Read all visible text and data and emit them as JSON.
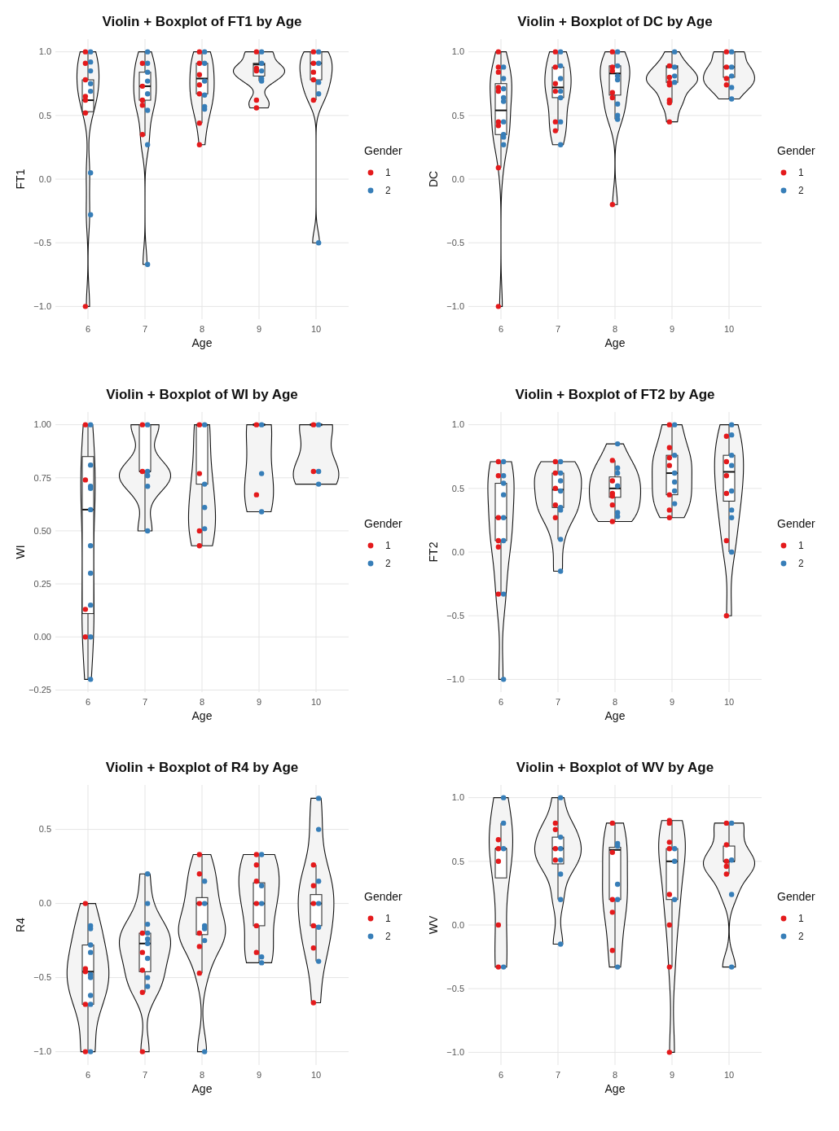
{
  "chart_data": [
    {
      "type": "box",
      "color": "#ffffff",
      "title": "Violin + Boxplot of FT1 by Age",
      "xlabel": "Age",
      "ylabel": "FT1",
      "legend_title": "Gender",
      "legend": "right",
      "grid": true,
      "marker": "circle",
      "categories": [
        "6",
        "7",
        "8",
        "9",
        "10"
      ],
      "ylim": [
        -1.1,
        1.1
      ],
      "yticks": [
        {
          "value": -1,
          "label": "−1.0"
        },
        {
          "value": -0.5,
          "label": "−0.5"
        },
        {
          "value": 0,
          "label": "0.0"
        },
        {
          "value": 0.5,
          "label": "0.5"
        },
        {
          "value": 1,
          "label": "1.0"
        }
      ],
      "boxes": [
        {
          "low": 0.52,
          "q1": 0.53,
          "median": 0.62,
          "q3": 0.78,
          "high": 1.0
        },
        {
          "low": 0.34,
          "q1": 0.62,
          "median": 0.73,
          "q3": 0.84,
          "high": 1.0
        },
        {
          "low": 0.44,
          "q1": 0.67,
          "median": 0.79,
          "q3": 0.91,
          "high": 1.0
        },
        {
          "low": 0.77,
          "q1": 0.81,
          "median": 0.9,
          "q3": 0.91,
          "high": 1.0
        },
        {
          "low": 0.62,
          "q1": 0.78,
          "median": 0.91,
          "q3": 1.0,
          "high": 1.0
        }
      ],
      "series": [
        {
          "type": "scatter",
          "name": "1",
          "color": "#e41a1c",
          "x": [
            "6",
            "6",
            "6",
            "6",
            "6",
            "6",
            "6",
            "7",
            "7",
            "7",
            "7",
            "7",
            "8",
            "8",
            "8",
            "8",
            "8",
            "8",
            "8",
            "9",
            "9",
            "9",
            "9",
            "9",
            "10",
            "10",
            "10",
            "10",
            "10"
          ],
          "values": [
            1.0,
            0.91,
            0.78,
            0.65,
            0.62,
            0.52,
            -1.0,
            0.91,
            0.73,
            0.62,
            0.58,
            0.35,
            1.0,
            0.91,
            0.82,
            0.74,
            0.67,
            0.44,
            0.27,
            1.0,
            0.87,
            0.85,
            0.62,
            0.56,
            1.0,
            0.91,
            0.84,
            0.78,
            0.62
          ]
        },
        {
          "type": "scatter",
          "name": "2",
          "color": "#377eb8",
          "x": [
            "6",
            "6",
            "6",
            "6",
            "6",
            "6",
            "6",
            "7",
            "7",
            "7",
            "7",
            "7",
            "7",
            "7",
            "7",
            "8",
            "8",
            "8",
            "8",
            "8",
            "8",
            "9",
            "9",
            "9",
            "9",
            "9",
            "10",
            "10",
            "10",
            "10",
            "10"
          ],
          "values": [
            1.0,
            0.92,
            0.85,
            0.75,
            0.69,
            0.05,
            -0.28,
            1.0,
            0.91,
            0.84,
            0.77,
            0.67,
            0.54,
            0.27,
            -0.67,
            1.0,
            0.91,
            0.77,
            0.66,
            0.57,
            0.55,
            1.0,
            0.91,
            0.85,
            0.79,
            0.77,
            1.0,
            0.91,
            0.76,
            0.67,
            -0.5
          ]
        }
      ]
    },
    {
      "type": "box",
      "color": "#ffffff",
      "title": "Violin + Boxplot of DC by Age",
      "xlabel": "Age",
      "ylabel": "DC",
      "legend_title": "Gender",
      "legend": "right",
      "grid": true,
      "marker": "circle",
      "categories": [
        "6",
        "7",
        "8",
        "9",
        "10"
      ],
      "ylim": [
        -1.1,
        1.1
      ],
      "yticks": [
        {
          "value": -1,
          "label": "−1.0"
        },
        {
          "value": -0.5,
          "label": "−0.5"
        },
        {
          "value": 0,
          "label": "0.0"
        },
        {
          "value": 0.5,
          "label": "0.5"
        },
        {
          "value": 1,
          "label": "1.0"
        }
      ],
      "boxes": [
        {
          "low": 0.09,
          "q1": 0.35,
          "median": 0.54,
          "q3": 0.75,
          "high": 1.0
        },
        {
          "low": 0.38,
          "q1": 0.64,
          "median": 0.72,
          "q3": 0.88,
          "high": 1.0
        },
        {
          "low": 0.47,
          "q1": 0.66,
          "median": 0.83,
          "q3": 0.89,
          "high": 1.0
        },
        {
          "low": 0.6,
          "q1": 0.76,
          "median": 0.88,
          "q3": 0.89,
          "high": 1.0
        },
        {
          "low": 0.63,
          "q1": 0.8,
          "median": 0.88,
          "q3": 1.0,
          "high": 1.0
        }
      ],
      "series": [
        {
          "type": "scatter",
          "name": "1",
          "color": "#e41a1c",
          "x": [
            "6",
            "6",
            "6",
            "6",
            "6",
            "6",
            "6",
            "6",
            "6",
            "7",
            "7",
            "7",
            "7",
            "7",
            "7",
            "8",
            "8",
            "8",
            "8",
            "8",
            "8",
            "9",
            "9",
            "9",
            "9",
            "9",
            "9",
            "9",
            "10",
            "10",
            "10",
            "10"
          ],
          "values": [
            1.0,
            0.88,
            0.84,
            0.72,
            0.69,
            0.45,
            0.42,
            0.09,
            -1.0,
            1.0,
            0.88,
            0.75,
            0.69,
            0.45,
            0.38,
            1.0,
            0.88,
            0.85,
            0.68,
            0.64,
            -0.2,
            0.89,
            0.8,
            0.76,
            0.74,
            0.62,
            0.6,
            0.45,
            1.0,
            0.88,
            0.79,
            0.74
          ]
        },
        {
          "type": "scatter",
          "name": "2",
          "color": "#377eb8",
          "x": [
            "6",
            "6",
            "6",
            "6",
            "6",
            "6",
            "6",
            "6",
            "6",
            "7",
            "7",
            "7",
            "7",
            "7",
            "7",
            "7",
            "8",
            "8",
            "8",
            "8",
            "8",
            "8",
            "8",
            "9",
            "9",
            "9",
            "9",
            "10",
            "10",
            "10",
            "10",
            "10"
          ],
          "values": [
            0.88,
            0.79,
            0.71,
            0.64,
            0.61,
            0.45,
            0.35,
            0.33,
            0.27,
            1.0,
            0.89,
            0.79,
            0.69,
            0.64,
            0.45,
            0.27,
            1.0,
            0.89,
            0.81,
            0.78,
            0.59,
            0.5,
            0.47,
            1.0,
            0.88,
            0.81,
            0.76,
            1.0,
            0.88,
            0.81,
            0.72,
            0.63
          ]
        }
      ]
    },
    {
      "type": "box",
      "color": "#ffffff",
      "title": "Violin + Boxplot of WI by Age",
      "xlabel": "Age",
      "ylabel": "WI",
      "legend_title": "Gender",
      "legend": "right",
      "grid": true,
      "marker": "circle",
      "categories": [
        "6",
        "7",
        "8",
        "9",
        "10"
      ],
      "ylim": [
        -0.26,
        1.06
      ],
      "yticks": [
        {
          "value": -0.25,
          "label": "−0.25"
        },
        {
          "value": 0,
          "label": "0.00"
        },
        {
          "value": 0.25,
          "label": "0.25"
        },
        {
          "value": 0.5,
          "label": "0.50"
        },
        {
          "value": 0.75,
          "label": "0.75"
        },
        {
          "value": 1,
          "label": "1.00"
        }
      ],
      "boxes": [
        {
          "low": -0.2,
          "q1": 0.11,
          "median": 0.6,
          "q3": 0.85,
          "high": 1.0
        },
        {
          "low": 0.5,
          "q1": 0.78,
          "median": 0.78,
          "q3": 1.0,
          "high": 1.0
        },
        {
          "low": 0.43,
          "q1": 0.72,
          "median": 1.0,
          "q3": 1.0,
          "high": 1.0
        },
        {
          "low": 1.0,
          "q1": 1.0,
          "median": 1.0,
          "q3": 1.0,
          "high": 1.0
        },
        {
          "low": 1.0,
          "q1": 1.0,
          "median": 1.0,
          "q3": 1.0,
          "high": 1.0
        }
      ],
      "series": [
        {
          "type": "scatter",
          "name": "1",
          "color": "#e41a1c",
          "x": [
            "6",
            "6",
            "6",
            "6",
            "7",
            "7",
            "8",
            "8",
            "8",
            "8",
            "9",
            "9",
            "10",
            "10"
          ],
          "values": [
            1.0,
            0.74,
            0.13,
            0.0,
            1.0,
            0.78,
            1.0,
            0.77,
            0.5,
            0.43,
            1.0,
            0.67,
            1.0,
            0.78
          ]
        },
        {
          "type": "scatter",
          "name": "2",
          "color": "#377eb8",
          "x": [
            "6",
            "6",
            "6",
            "6",
            "6",
            "6",
            "6",
            "6",
            "6",
            "6",
            "7",
            "7",
            "7",
            "7",
            "7",
            "8",
            "8",
            "8",
            "8",
            "9",
            "9",
            "9",
            "10",
            "10",
            "10"
          ],
          "values": [
            1.0,
            0.81,
            0.71,
            0.7,
            0.6,
            0.43,
            0.3,
            0.15,
            0.0,
            -0.2,
            1.0,
            0.78,
            0.76,
            0.71,
            0.5,
            1.0,
            0.72,
            0.61,
            0.51,
            1.0,
            0.77,
            0.59,
            1.0,
            0.78,
            0.72
          ]
        }
      ]
    },
    {
      "type": "box",
      "color": "#ffffff",
      "title": "Violin + Boxplot of FT2 by Age",
      "xlabel": "Age",
      "ylabel": "FT2",
      "legend_title": "Gender",
      "legend": "right",
      "grid": true,
      "marker": "circle",
      "categories": [
        "6",
        "7",
        "8",
        "9",
        "10"
      ],
      "ylim": [
        -1.1,
        1.1
      ],
      "yticks": [
        {
          "value": -1,
          "label": "−1.0"
        },
        {
          "value": -0.5,
          "label": "−0.5"
        },
        {
          "value": 0,
          "label": "0.0"
        },
        {
          "value": 0.5,
          "label": "0.5"
        },
        {
          "value": 1,
          "label": "1.0"
        }
      ],
      "boxes": [
        {
          "low": -0.33,
          "q1": 0.09,
          "median": 0.27,
          "q3": 0.54,
          "high": 0.71
        },
        {
          "low": 0.1,
          "q1": 0.35,
          "median": 0.49,
          "q3": 0.62,
          "high": 0.71
        },
        {
          "low": 0.24,
          "q1": 0.43,
          "median": 0.5,
          "q3": 0.59,
          "high": 0.72
        },
        {
          "low": 0.27,
          "q1": 0.45,
          "median": 0.62,
          "q3": 0.76,
          "high": 1.0
        },
        {
          "low": 0.0,
          "q1": 0.4,
          "median": 0.63,
          "q3": 0.76,
          "high": 1.0
        }
      ],
      "series": [
        {
          "type": "scatter",
          "name": "1",
          "color": "#e41a1c",
          "x": [
            "6",
            "6",
            "6",
            "6",
            "6",
            "6",
            "7",
            "7",
            "7",
            "7",
            "7",
            "8",
            "8",
            "8",
            "8",
            "8",
            "8",
            "9",
            "9",
            "9",
            "9",
            "9",
            "9",
            "9",
            "10",
            "10",
            "10",
            "10",
            "10",
            "10"
          ],
          "values": [
            0.71,
            0.6,
            0.27,
            0.09,
            0.04,
            -0.33,
            0.71,
            0.62,
            0.5,
            0.37,
            0.27,
            0.72,
            0.56,
            0.46,
            0.44,
            0.37,
            0.24,
            1.0,
            0.82,
            0.74,
            0.68,
            0.45,
            0.33,
            0.27,
            0.91,
            0.71,
            0.6,
            0.46,
            0.09,
            -0.5
          ]
        },
        {
          "type": "scatter",
          "name": "2",
          "color": "#377eb8",
          "x": [
            "6",
            "6",
            "6",
            "6",
            "6",
            "6",
            "6",
            "6",
            "7",
            "7",
            "7",
            "7",
            "7",
            "7",
            "7",
            "7",
            "8",
            "8",
            "8",
            "8",
            "8",
            "8",
            "9",
            "9",
            "9",
            "9",
            "9",
            "9",
            "10",
            "10",
            "10",
            "10",
            "10",
            "10",
            "10",
            "10"
          ],
          "values": [
            0.71,
            0.6,
            0.54,
            0.45,
            0.27,
            0.09,
            -0.33,
            -1.0,
            0.71,
            0.62,
            0.56,
            0.48,
            0.35,
            0.33,
            0.1,
            -0.15,
            0.85,
            0.66,
            0.62,
            0.52,
            0.31,
            0.28,
            1.0,
            0.76,
            0.62,
            0.55,
            0.48,
            0.38,
            1.0,
            0.92,
            0.76,
            0.68,
            0.48,
            0.33,
            0.27,
            0.0
          ]
        }
      ]
    },
    {
      "type": "box",
      "color": "#ffffff",
      "title": "Violin + Boxplot of R4 by Age",
      "xlabel": "Age",
      "ylabel": "R4",
      "legend_title": "Gender",
      "legend": "right",
      "grid": true,
      "marker": "circle",
      "categories": [
        "6",
        "7",
        "8",
        "9",
        "10"
      ],
      "ylim": [
        -1.09,
        0.8
      ],
      "yticks": [
        {
          "value": -1,
          "label": "−1.0"
        },
        {
          "value": -0.5,
          "label": "−0.5"
        },
        {
          "value": 0,
          "label": "0.0"
        },
        {
          "value": 0.5,
          "label": "0.5"
        }
      ],
      "boxes": [
        {
          "low": -1.0,
          "q1": -0.68,
          "median": -0.46,
          "q3": -0.28,
          "high": 0.0
        },
        {
          "low": -0.6,
          "q1": -0.46,
          "median": -0.27,
          "q3": -0.2,
          "high": 0.2
        },
        {
          "low": -0.47,
          "q1": -0.21,
          "median": 0.0,
          "q3": 0.04,
          "high": 0.33
        },
        {
          "low": -0.4,
          "q1": -0.15,
          "median": 0.0,
          "q3": 0.14,
          "high": 0.33
        },
        {
          "low": -0.39,
          "q1": -0.15,
          "median": 0.0,
          "q3": 0.06,
          "high": 0.26
        }
      ],
      "series": [
        {
          "type": "scatter",
          "name": "1",
          "color": "#e41a1c",
          "x": [
            "6",
            "6",
            "6",
            "6",
            "6",
            "7",
            "7",
            "7",
            "7",
            "7",
            "8",
            "8",
            "8",
            "8",
            "8",
            "8",
            "9",
            "9",
            "9",
            "9",
            "9",
            "9",
            "10",
            "10",
            "10",
            "10",
            "10",
            "10"
          ],
          "values": [
            0.0,
            -0.44,
            -0.46,
            -0.68,
            -1.0,
            -0.2,
            -0.33,
            -0.45,
            -0.6,
            -1.0,
            0.33,
            0.2,
            0.0,
            -0.2,
            -0.29,
            -0.47,
            0.33,
            0.26,
            0.15,
            0.0,
            -0.15,
            -0.33,
            0.26,
            0.12,
            0.0,
            -0.15,
            -0.3,
            -0.67
          ]
        },
        {
          "type": "scatter",
          "name": "2",
          "color": "#377eb8",
          "x": [
            "6",
            "6",
            "6",
            "6",
            "6",
            "6",
            "6",
            "6",
            "6",
            "7",
            "7",
            "7",
            "7",
            "7",
            "7",
            "7",
            "7",
            "7",
            "8",
            "8",
            "8",
            "8",
            "8",
            "8",
            "9",
            "9",
            "9",
            "9",
            "9",
            "10",
            "10",
            "10",
            "10",
            "10",
            "10"
          ],
          "values": [
            -0.15,
            -0.17,
            -0.28,
            -0.33,
            -0.48,
            -0.5,
            -0.62,
            -0.68,
            -1.0,
            0.2,
            0.0,
            -0.14,
            -0.2,
            -0.24,
            -0.27,
            -0.37,
            -0.5,
            -0.56,
            0.15,
            0.0,
            -0.15,
            -0.17,
            -0.25,
            -1.0,
            0.33,
            0.12,
            0.0,
            -0.36,
            -0.4,
            0.71,
            0.5,
            0.15,
            0.0,
            -0.16,
            -0.39
          ]
        }
      ]
    },
    {
      "type": "box",
      "color": "#ffffff",
      "title": "Violin + Boxplot of WV by Age",
      "xlabel": "Age",
      "ylabel": "WV",
      "legend_title": "Gender",
      "legend": "right",
      "grid": true,
      "marker": "circle",
      "categories": [
        "6",
        "7",
        "8",
        "9",
        "10"
      ],
      "ylim": [
        -1.1,
        1.1
      ],
      "yticks": [
        {
          "value": -1,
          "label": "−1.0"
        },
        {
          "value": -0.5,
          "label": "−0.5"
        },
        {
          "value": 0,
          "label": "0.0"
        },
        {
          "value": 0.5,
          "label": "0.5"
        },
        {
          "value": 1,
          "label": "1.0"
        }
      ],
      "boxes": [
        {
          "low": 0.37,
          "q1": 0.37,
          "median": 0.6,
          "q3": 0.6,
          "high": 0.8
        },
        {
          "low": 0.2,
          "q1": 0.48,
          "median": 0.6,
          "q3": 0.69,
          "high": 1.0
        },
        {
          "low": -0.33,
          "q1": 0.2,
          "median": 0.59,
          "q3": 0.61,
          "high": 0.8
        },
        {
          "low": -0.33,
          "q1": 0.2,
          "median": 0.5,
          "q3": 0.6,
          "high": 0.82
        },
        {
          "low": 0.4,
          "q1": 0.5,
          "median": 0.5,
          "q3": 0.62,
          "high": 0.8
        }
      ],
      "series": [
        {
          "type": "scatter",
          "name": "1",
          "color": "#e41a1c",
          "x": [
            "6",
            "6",
            "6",
            "6",
            "6",
            "7",
            "7",
            "7",
            "7",
            "8",
            "8",
            "8",
            "8",
            "8",
            "9",
            "9",
            "9",
            "9",
            "9",
            "9",
            "9",
            "9",
            "10",
            "10",
            "10",
            "10",
            "10"
          ],
          "values": [
            0.67,
            0.6,
            0.5,
            0.0,
            -0.33,
            0.8,
            0.75,
            0.6,
            0.51,
            0.8,
            0.57,
            0.2,
            0.1,
            -0.2,
            0.82,
            0.8,
            0.65,
            0.6,
            0.24,
            0.0,
            -0.33,
            -1.0,
            0.8,
            0.63,
            0.5,
            0.46,
            0.4
          ]
        },
        {
          "type": "scatter",
          "name": "2",
          "color": "#377eb8",
          "x": [
            "6",
            "6",
            "6",
            "6",
            "7",
            "7",
            "7",
            "7",
            "7",
            "7",
            "7",
            "8",
            "8",
            "8",
            "8",
            "8",
            "9",
            "9",
            "9",
            "10",
            "10",
            "10",
            "10"
          ],
          "values": [
            1.0,
            0.8,
            0.6,
            -0.33,
            1.0,
            0.69,
            0.6,
            0.51,
            0.4,
            0.2,
            -0.15,
            0.64,
            0.62,
            0.32,
            0.2,
            -0.33,
            0.6,
            0.5,
            0.2,
            0.8,
            0.51,
            0.24,
            -0.33
          ]
        }
      ]
    }
  ]
}
